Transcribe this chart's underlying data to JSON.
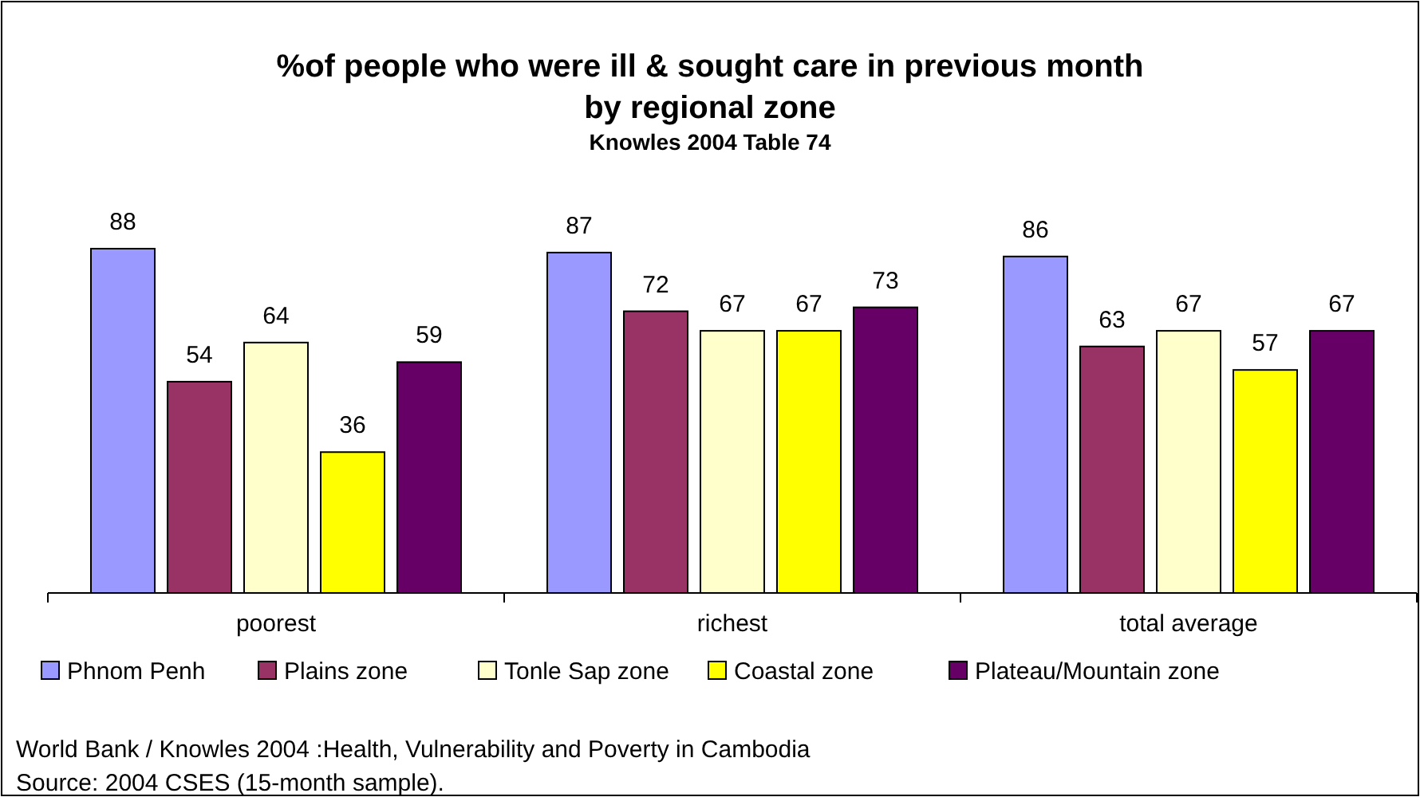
{
  "chart_data": {
    "type": "bar",
    "title": "%of people who were ill & sought care in previous month\nby regional zone",
    "subtitle": "Knowles 2004 Table 74",
    "categories": [
      "poorest",
      "richest",
      "total average"
    ],
    "series": [
      {
        "name": "Phnom Penh",
        "color": "#9999ff",
        "values": [
          88,
          87,
          86
        ]
      },
      {
        "name": "Plains zone",
        "color": "#993366",
        "values": [
          54,
          72,
          63
        ]
      },
      {
        "name": "Tonle Sap zone",
        "color": "#ffffcc",
        "values": [
          64,
          67,
          67
        ]
      },
      {
        "name": "Coastal zone",
        "color": "#ffff00",
        "values": [
          36,
          67,
          57
        ]
      },
      {
        "name": "Plateau/Mountain zone",
        "color": "#660066",
        "values": [
          59,
          73,
          67
        ]
      }
    ],
    "data_labels": true,
    "legend": "bottom",
    "annotations": [
      "World Bank / Knowles 2004 :Health, Vulnerability and Poverty in Cambodia",
      "Source: 2004 CSES (15-month sample)."
    ]
  }
}
